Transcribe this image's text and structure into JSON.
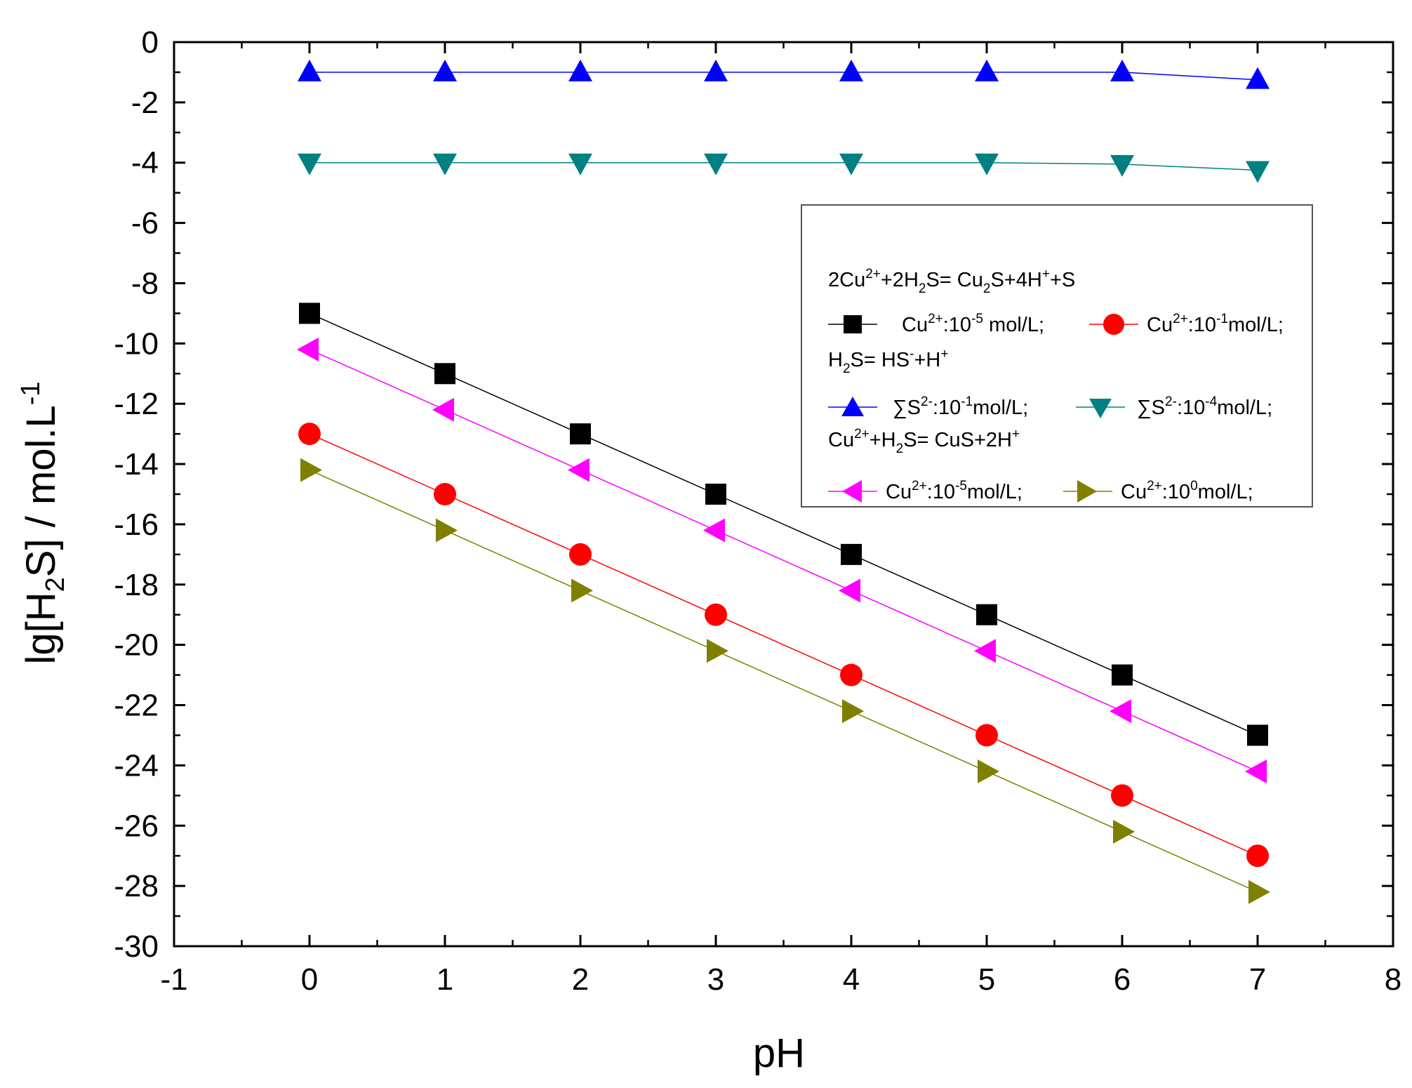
{
  "chart_data": {
    "type": "line",
    "title": "",
    "xlabel": "pH",
    "ylabel": "lg[H2S] / mol.L-1",
    "xlim": [
      -1,
      8
    ],
    "ylim": [
      -30,
      0
    ],
    "x_ticks": [
      "-1",
      "0",
      "1",
      "2",
      "3",
      "4",
      "5",
      "6",
      "7",
      "8"
    ],
    "y_ticks": [
      "0",
      "-2",
      "-4",
      "-6",
      "-8",
      "-10",
      "-12",
      "-14",
      "-16",
      "-18",
      "-20",
      "-22",
      "-24",
      "-26",
      "-28",
      "-30"
    ],
    "grid": false,
    "legend_position": "right",
    "x": [
      0,
      1,
      2,
      3,
      4,
      5,
      6,
      7
    ],
    "series": [
      {
        "name": "Cu2+:10-5 mol/L;",
        "marker": "square",
        "color": "#000000",
        "values": [
          -9,
          -11,
          -13,
          -15,
          -17,
          -19,
          -21,
          -23
        ]
      },
      {
        "name": "Cu2+:10-1mol/L;",
        "marker": "circle",
        "color": "#ff0000",
        "values": [
          -13,
          -15,
          -17,
          -19,
          -21,
          -23,
          -25,
          -27
        ]
      },
      {
        "name": "∑S2-:10-1mol/L;",
        "marker": "triangle-up",
        "color": "#0000ff",
        "values": [
          -1,
          -1,
          -1,
          -1,
          -1,
          -1,
          -1,
          -1.25
        ]
      },
      {
        "name": "∑S2-:10-4mol/L;",
        "marker": "triangle-down",
        "color": "#008080",
        "values": [
          -4,
          -4,
          -4,
          -4,
          -4,
          -4,
          -4.05,
          -4.25
        ]
      },
      {
        "name": "Cu2+:10-5mol/L;",
        "marker": "triangle-left",
        "color": "#ff00ff",
        "values": [
          -10.2,
          -12.2,
          -14.2,
          -16.2,
          -18.2,
          -20.2,
          -22.2,
          -24.2
        ]
      },
      {
        "name": "Cu2+:100mol/L;",
        "marker": "triangle-right",
        "color": "#808000",
        "values": [
          -14.2,
          -16.2,
          -18.2,
          -20.2,
          -22.2,
          -24.2,
          -26.2,
          -28.2
        ]
      }
    ],
    "legend_headers": [
      "2Cu2++2H2S= Cu2S+4H++S",
      "H2S= HS-+H+",
      "Cu2++H2S= CuS+2H+"
    ]
  }
}
